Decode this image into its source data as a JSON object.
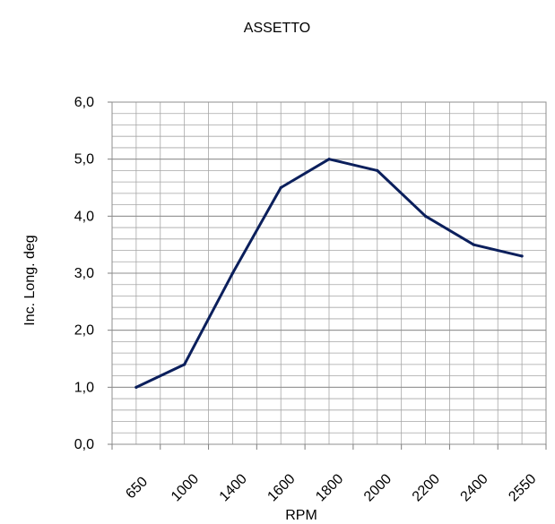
{
  "chart_data": {
    "type": "line",
    "title": "ASSETTO",
    "xlabel": "RPM",
    "ylabel": "Inc. Long. deg",
    "categories": [
      "650",
      "1000",
      "1400",
      "1600",
      "1800",
      "2000",
      "2200",
      "2400",
      "2550"
    ],
    "x": [
      650,
      1000,
      1400,
      1600,
      1800,
      2000,
      2200,
      2400,
      2550
    ],
    "series": [
      {
        "values": [
          1.0,
          1.4,
          3.0,
          4.5,
          5.0,
          4.8,
          4.0,
          3.5,
          3.3
        ]
      }
    ],
    "ylim": [
      0,
      6
    ],
    "yticks": [
      "0,0",
      "1,0",
      "2,0",
      "3,0",
      "4,0",
      "5,0",
      "6,0"
    ],
    "grid": true,
    "line_color": "#0b1f5c",
    "grid_color": "#a6a6a6"
  }
}
